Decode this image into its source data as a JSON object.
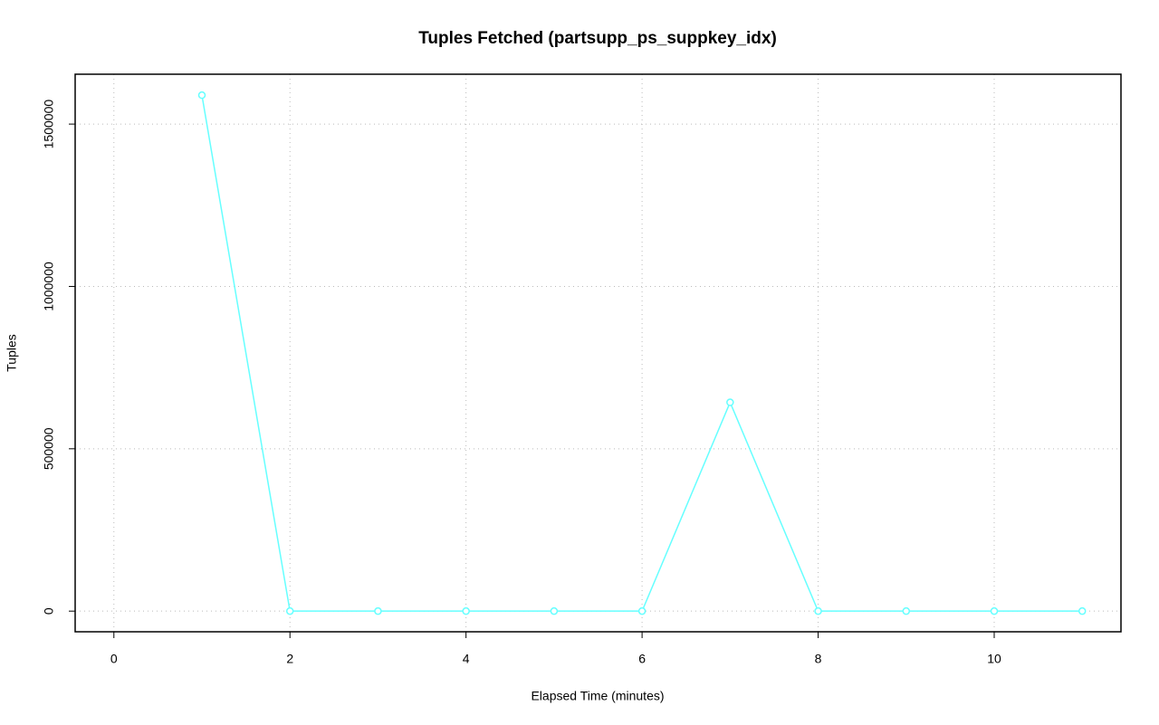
{
  "chart_data": {
    "type": "line",
    "title": "Tuples Fetched (partsupp_ps_suppkey_idx)",
    "x_label": "Elapsed Time (minutes)",
    "y_label": "Tuples",
    "x": [
      1,
      2,
      3,
      4,
      5,
      6,
      7,
      8,
      9,
      10,
      11
    ],
    "series": [
      {
        "name": "partsupp_ps_suppkey_idx",
        "color": "#66ffff",
        "values": [
          1589000,
          0,
          0,
          0,
          0,
          0,
          643000,
          0,
          0,
          0,
          0
        ]
      }
    ],
    "xlim": [
      -0.44,
      11.44
    ],
    "xticks": [
      0,
      2,
      4,
      6,
      8,
      10
    ],
    "ylim": [
      -63600,
      1653600
    ],
    "yticks": [
      0,
      500000,
      1000000,
      1500000
    ],
    "grid": true
  }
}
